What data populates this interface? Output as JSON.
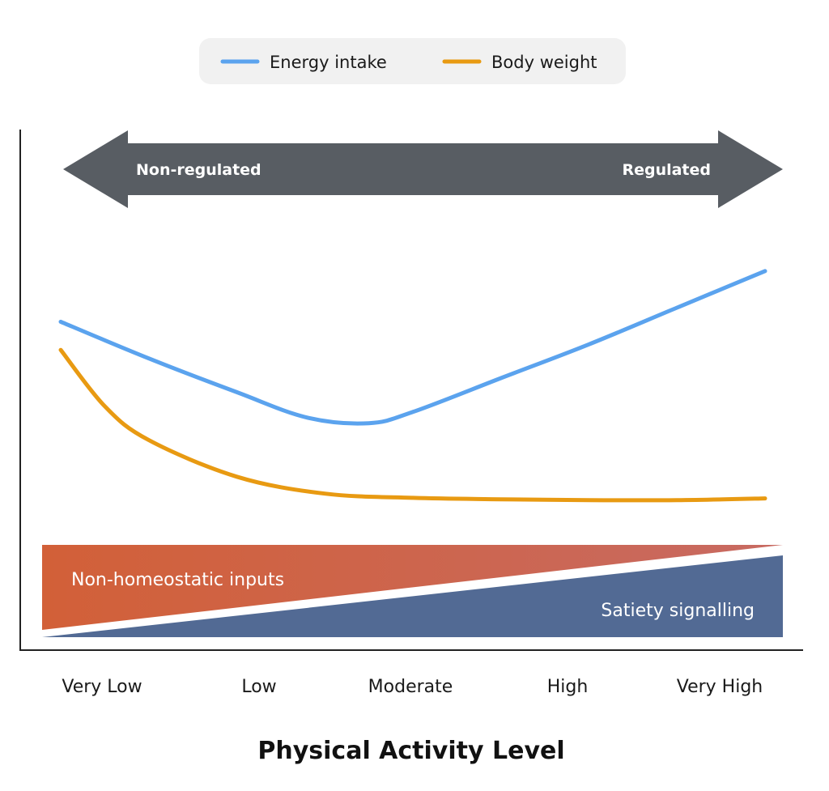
{
  "chart_data": {
    "type": "line",
    "title": "",
    "xlabel": "Physical Activity Level",
    "ylabel": "",
    "categories": [
      "Very Low",
      "Low",
      "Moderate",
      "High",
      "Very High"
    ],
    "ylim": [
      0,
      100
    ],
    "grid": false,
    "legend_position": "top-center",
    "series": [
      {
        "name": "Energy intake",
        "color": "#5ba3ee",
        "x": [
          0,
          0.5,
          1,
          1.4,
          1.75,
          2,
          2.5,
          3,
          3.5,
          4
        ],
        "values": [
          72,
          59,
          47,
          38,
          36,
          40,
          52,
          64,
          77,
          90
        ]
      },
      {
        "name": "Body weight",
        "color": "#e89a12",
        "x": [
          0,
          0.25,
          0.5,
          1,
          1.5,
          2,
          2.5,
          3,
          3.5,
          4
        ],
        "values": [
          62,
          42,
          30,
          17,
          11,
          9.5,
          9,
          8.7,
          8.7,
          9.3
        ]
      }
    ],
    "regulation_arrow": {
      "left_label": "Non-regulated",
      "right_label": "Regulated",
      "color": "#585d63"
    },
    "bands": [
      {
        "name": "Non-homeostatic inputs",
        "color_start": "#d26038",
        "color_end": "#c86a62",
        "trend": "decreasing"
      },
      {
        "name": "Satiety signalling",
        "color": "#526a94",
        "trend": "increasing"
      }
    ]
  },
  "legend_bg": "#f1f1f1"
}
